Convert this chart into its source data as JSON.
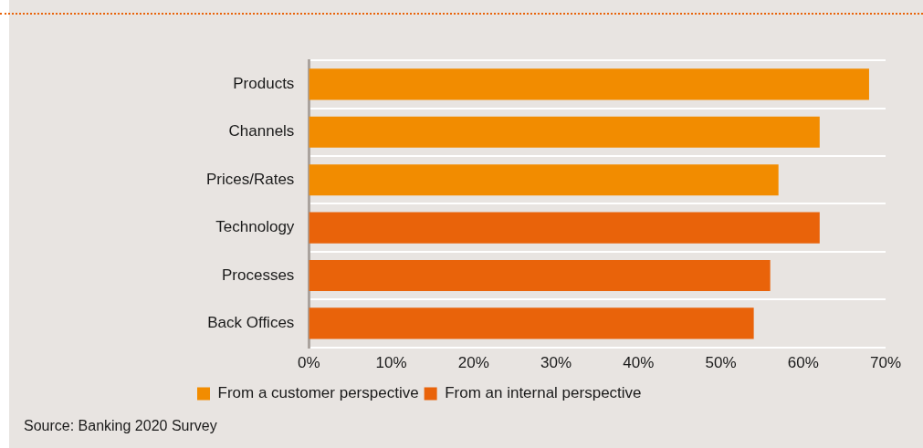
{
  "chart_data": {
    "type": "bar",
    "orientation": "horizontal",
    "categories": [
      "Products",
      "Channels",
      "Prices/Rates",
      "Technology",
      "Processes",
      "Back Offices"
    ],
    "series": [
      {
        "name": "From a customer perspective",
        "color": "#f28c00",
        "values": [
          68,
          62,
          57,
          null,
          null,
          null
        ]
      },
      {
        "name": "From an internal perspective",
        "color": "#e9630a",
        "values": [
          null,
          null,
          null,
          62,
          56,
          54
        ]
      }
    ],
    "xlim": [
      0,
      70
    ],
    "xticks": [
      {
        "value": 0,
        "label": "0%"
      },
      {
        "value": 10,
        "label": "10%"
      },
      {
        "value": 20,
        "label": "20%"
      },
      {
        "value": 30,
        "label": "30%"
      },
      {
        "value": 40,
        "label": "40%"
      },
      {
        "value": 50,
        "label": "50%"
      },
      {
        "value": 60,
        "label": "60%"
      },
      {
        "value": 70,
        "label": "70%"
      }
    ],
    "grid": "y",
    "legend": "bottom left",
    "annotations": [
      "Source: Banking 2020 Survey"
    ]
  }
}
